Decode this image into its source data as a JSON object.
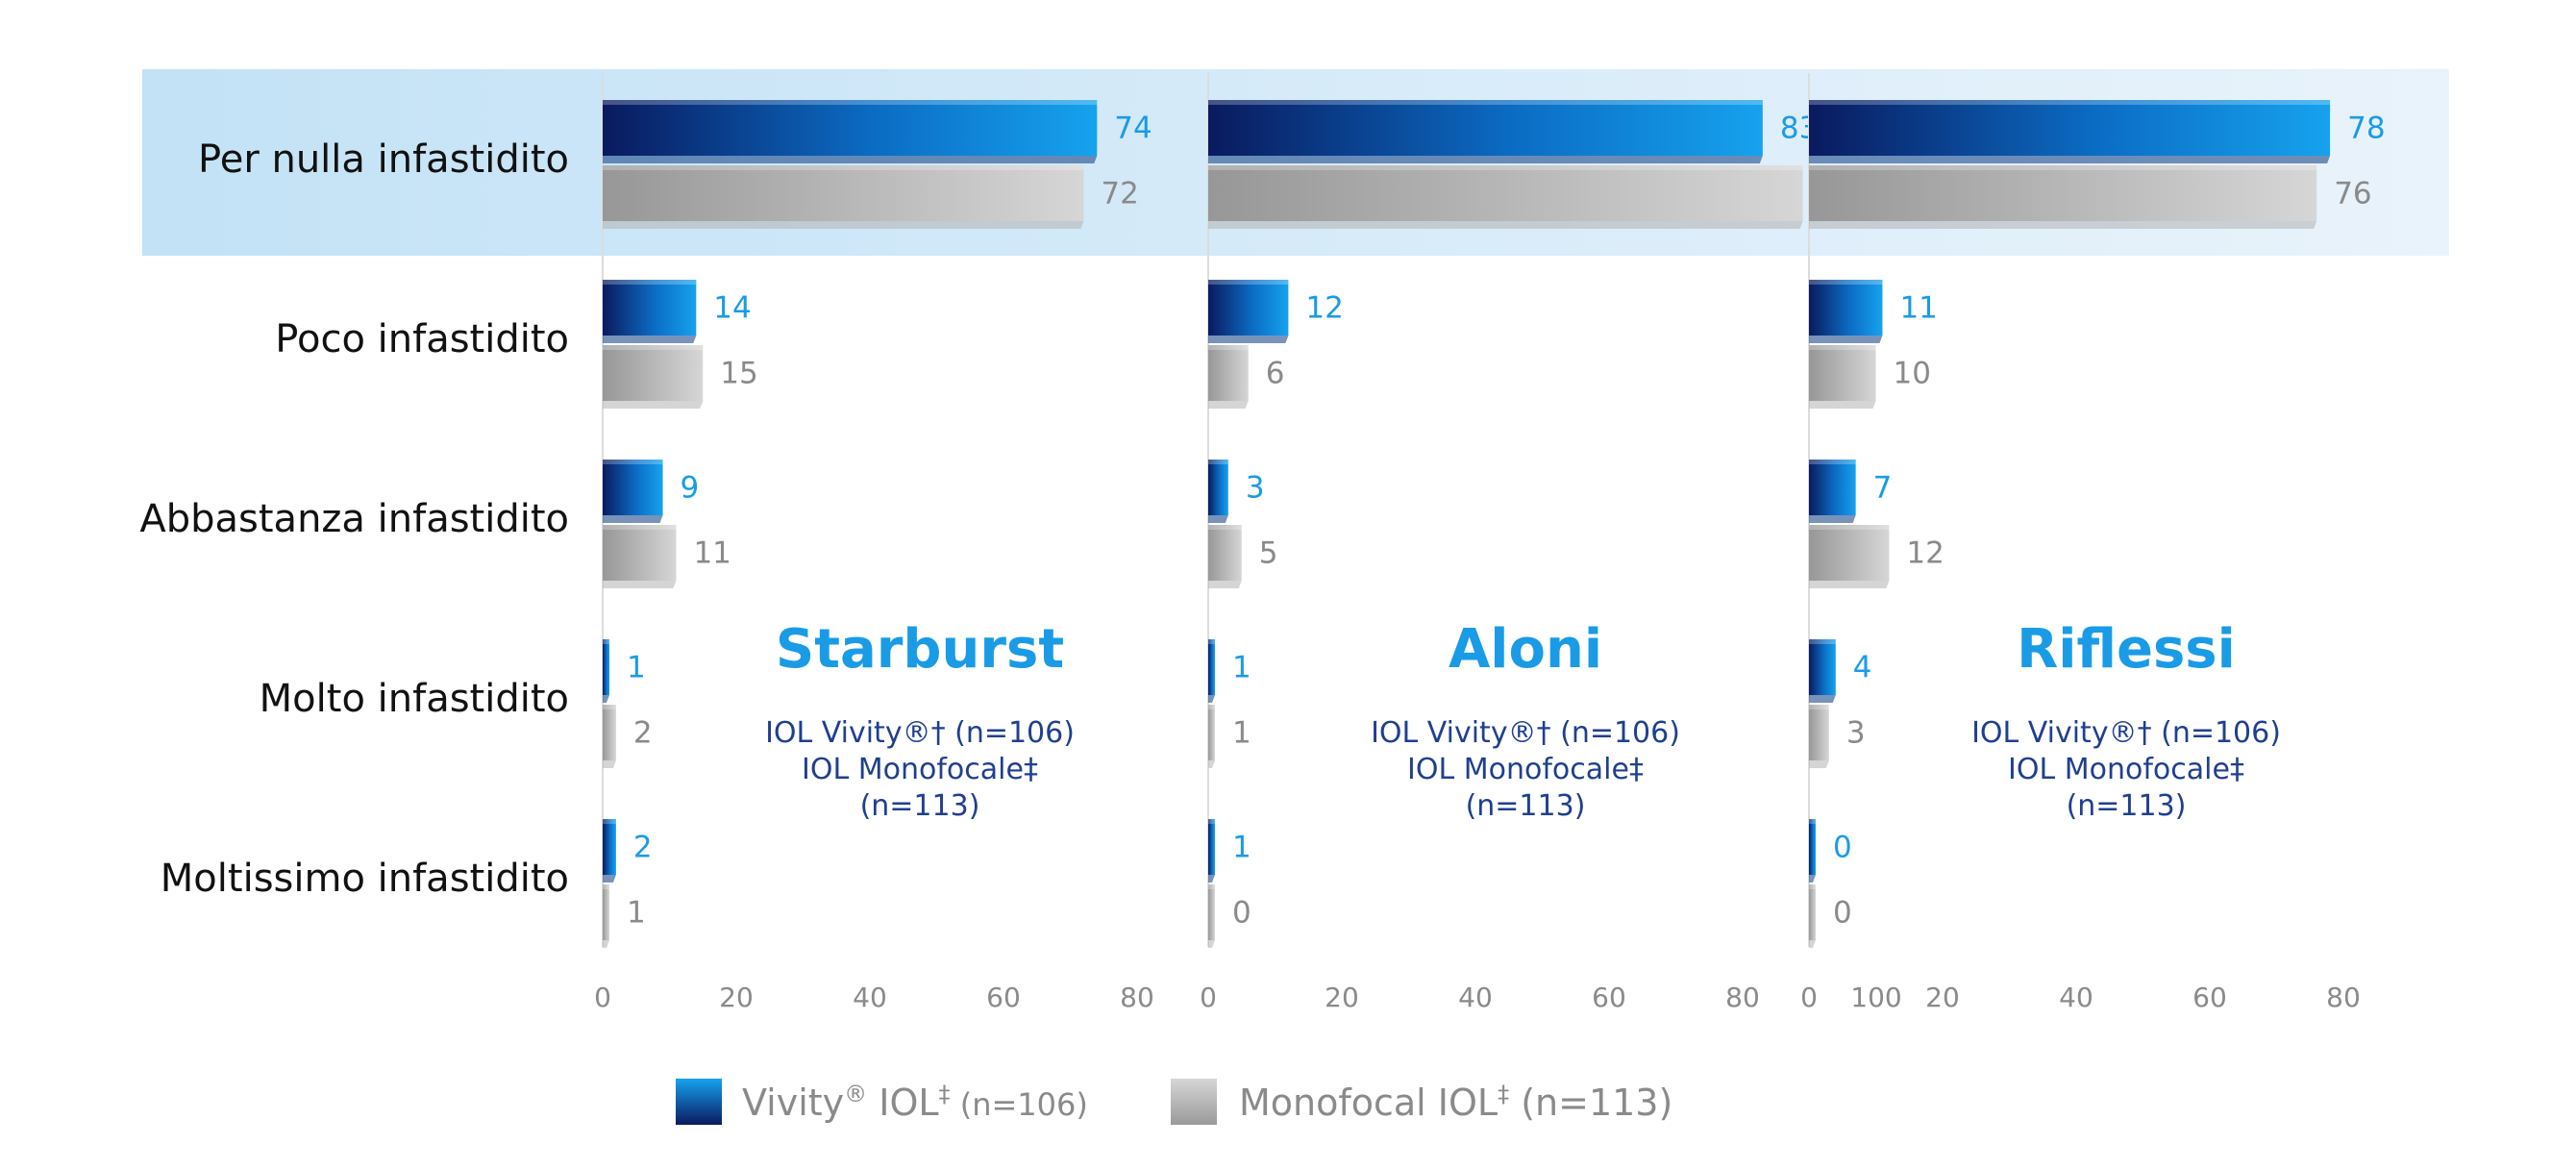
{
  "colors": {
    "blue_dark": "#0a1a5e",
    "blue_light": "#16a2ee",
    "gray_dark": "#9a9a9a",
    "gray_light": "#d4d4d4",
    "highlight": "#cde6f7",
    "title_blue": "#1a9be6",
    "sub_navy": "#1f3f8f"
  },
  "chart_data": {
    "type": "bar",
    "orientation": "horizontal",
    "categories": [
      "Per nulla infastidito",
      "Poco infastidito",
      "Abbastanza infastidito",
      "Molto infastidito",
      "Moltissimo infastidito"
    ],
    "highlighted_category": "Per nulla infastidito",
    "panels": [
      {
        "title": "Starburst",
        "subtitle_lines": [
          "IOL Vivity®† (n=106)",
          "IOL Monofocale‡",
          "(n=113)"
        ],
        "xlim": [
          0,
          80
        ],
        "xticks": [
          "0",
          "20",
          "40",
          "60",
          "80"
        ],
        "series": [
          {
            "key": "vivity",
            "values": [
              74,
              14,
              9,
              1,
              2
            ]
          },
          {
            "key": "monofocal",
            "values": [
              72,
              15,
              11,
              2,
              1
            ]
          }
        ]
      },
      {
        "title": "Aloni",
        "subtitle_lines": [
          "IOL Vivity®† (n=106)",
          "IOL Monofocale‡",
          "(n=113)"
        ],
        "xlim": [
          0,
          100
        ],
        "xticks": [
          "0",
          "20",
          "40",
          "60",
          "80",
          "100"
        ],
        "series": [
          {
            "key": "vivity",
            "values": [
              83,
              12,
              3,
              1,
              1
            ]
          },
          {
            "key": "monofocal",
            "values": [
              89,
              6,
              5,
              1,
              0
            ]
          }
        ]
      },
      {
        "title": "Riflessi",
        "subtitle_lines": [
          "IOL Vivity®† (n=106)",
          "IOL Monofocale‡",
          "(n=113)"
        ],
        "xlim": [
          0,
          80
        ],
        "xticks": [
          "0",
          "20",
          "40",
          "60",
          "80"
        ],
        "series": [
          {
            "key": "vivity",
            "values": [
              78,
              11,
              7,
              4,
              0
            ]
          },
          {
            "key": "monofocal",
            "values": [
              76,
              10,
              12,
              3,
              0
            ]
          }
        ]
      }
    ],
    "legend": {
      "placement": "bottom-center",
      "items": [
        {
          "key": "vivity",
          "name": "Vivity",
          "sup1": "®",
          "mid": " IOL",
          "sup2": "‡",
          "n": " (n=106)"
        },
        {
          "key": "monofocal",
          "name": "Monofocal IOL",
          "sup1": "",
          "mid": "",
          "sup2": "‡",
          "n": " (n=113)"
        }
      ]
    }
  }
}
